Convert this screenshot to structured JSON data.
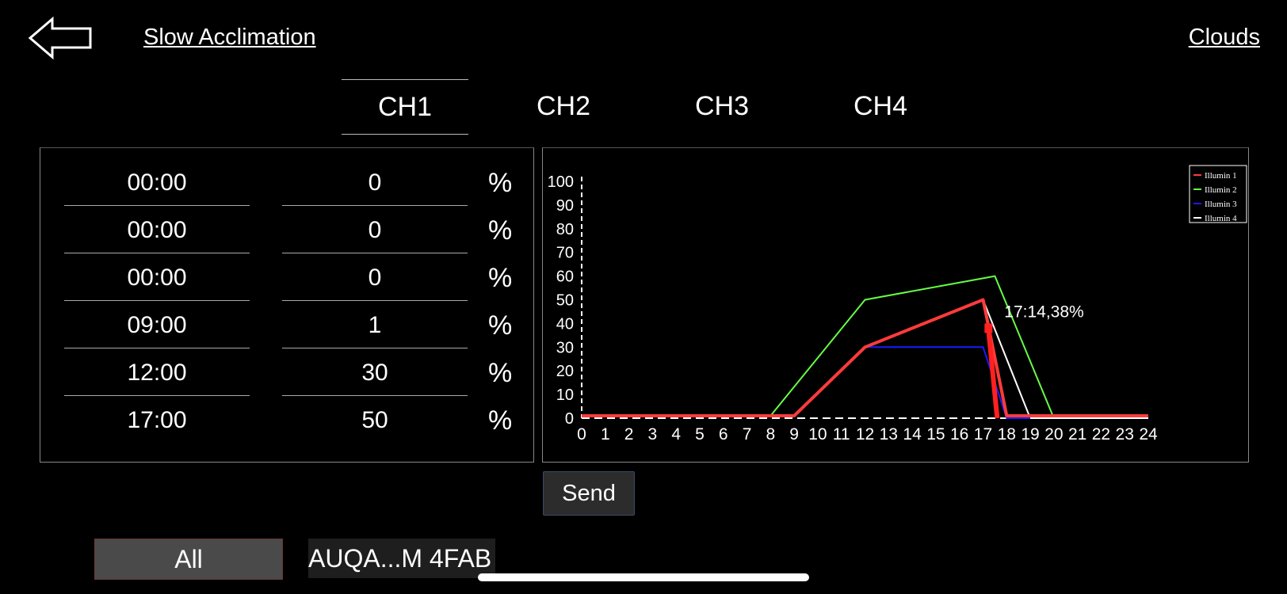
{
  "header": {
    "back_icon": "arrow-left-icon",
    "mode_label": "Slow Acclimation",
    "clouds_label": "Clouds"
  },
  "tabs": [
    {
      "label": "CH1",
      "active": true
    },
    {
      "label": "CH2",
      "active": false
    },
    {
      "label": "CH3",
      "active": false
    },
    {
      "label": "CH4",
      "active": false
    }
  ],
  "schedule": {
    "unit": "%",
    "rows": [
      {
        "time": "00:00",
        "value": "0"
      },
      {
        "time": "00:00",
        "value": "0"
      },
      {
        "time": "00:00",
        "value": "0"
      },
      {
        "time": "09:00",
        "value": "1"
      },
      {
        "time": "12:00",
        "value": "30"
      },
      {
        "time": "17:00",
        "value": "50"
      }
    ]
  },
  "chart_data": {
    "type": "line",
    "xlim": [
      0,
      24
    ],
    "ylim": [
      0,
      100
    ],
    "x_ticks": [
      0,
      1,
      2,
      3,
      4,
      5,
      6,
      7,
      8,
      9,
      10,
      11,
      12,
      13,
      14,
      15,
      16,
      17,
      18,
      19,
      20,
      21,
      22,
      23,
      24
    ],
    "y_ticks": [
      0,
      10,
      20,
      30,
      40,
      50,
      60,
      70,
      80,
      90,
      100
    ],
    "legend_position": "top-right",
    "annotation": "17:14,38%",
    "cursor": {
      "x": 17.23,
      "y": 38
    },
    "series": [
      {
        "name": "Illumin 1",
        "color": "#ff3b3b",
        "points": [
          [
            0,
            1
          ],
          [
            9,
            1
          ],
          [
            12,
            30
          ],
          [
            17,
            50
          ],
          [
            18,
            1
          ],
          [
            24,
            1
          ]
        ]
      },
      {
        "name": "Illumin 2",
        "color": "#66ff44",
        "points": [
          [
            8,
            1
          ],
          [
            12,
            50
          ],
          [
            17.5,
            60
          ],
          [
            20,
            0
          ]
        ]
      },
      {
        "name": "Illumin 3",
        "color": "#1a1aff",
        "points": [
          [
            12,
            30
          ],
          [
            17,
            30
          ],
          [
            18,
            0
          ],
          [
            19,
            0
          ]
        ]
      },
      {
        "name": "Illumin 4",
        "color": "#ffffff",
        "points": [
          [
            0,
            1
          ],
          [
            9,
            1
          ],
          [
            12,
            30
          ],
          [
            17,
            50
          ],
          [
            19,
            0
          ],
          [
            24,
            0
          ]
        ]
      }
    ]
  },
  "actions": {
    "send_label": "Send",
    "all_label": "All",
    "device_label": "AUQA...M 4FAB"
  }
}
